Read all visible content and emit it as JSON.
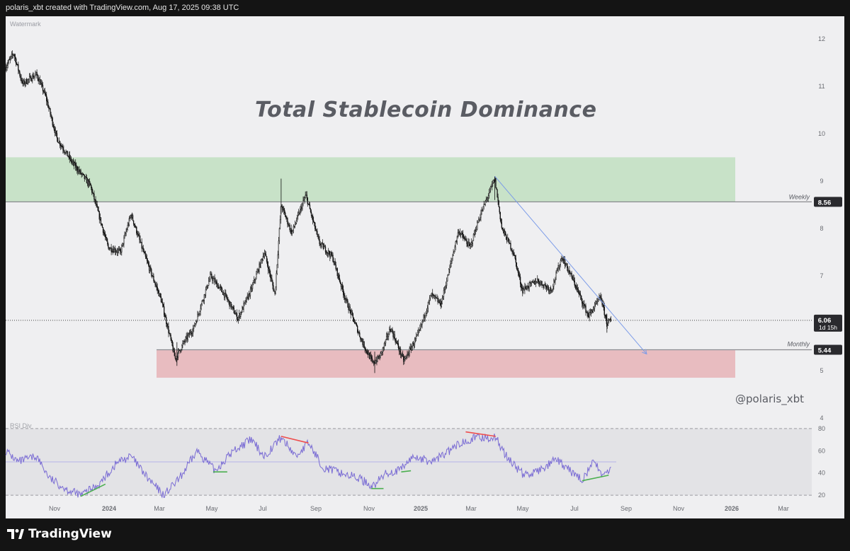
{
  "header": {
    "text": "polaris_xbt created with TradingView.com, Aug 17, 2025 09:38 UTC"
  },
  "watermark": "Watermark",
  "title": "Total Stablecoin Dominance",
  "handle": "@polaris_xbt",
  "brand": {
    "name": "TradingView",
    "logo_icon": "tradingview-logo-icon"
  },
  "rsi_label": "RSI Div",
  "colors": {
    "resistance_zone": "#c8e2c8",
    "support_zone": "#e8bcc0",
    "trendline": "#7b9be8",
    "rsi_line": "#7a6cd4",
    "bearish_div": "#ee4d4d",
    "bullish_div": "#4caf50"
  },
  "levels": {
    "weekly": {
      "label": "Weekly",
      "value": 8.56
    },
    "monthly": {
      "label": "Monthly",
      "value": 5.44
    },
    "current": {
      "value": "6.06",
      "countdown": "1d 15h"
    }
  },
  "chart_data": {
    "type": "candlestick",
    "title": "Total Stablecoin Dominance",
    "y_ticks": [
      "12",
      "11",
      "10",
      "9",
      "8",
      "7",
      "6",
      "5",
      "4"
    ],
    "ylim": [
      4,
      12.4
    ],
    "x_ticks": [
      "Nov",
      "2024",
      "Mar",
      "May",
      "Jul",
      "Sep",
      "Nov",
      "2025",
      "Mar",
      "May",
      "Jul",
      "Sep",
      "Nov",
      "2026",
      "Mar"
    ],
    "zones": [
      {
        "name": "resistance",
        "from": 8.55,
        "to": 9.5
      },
      {
        "name": "support",
        "from": 4.85,
        "to": 5.43
      }
    ],
    "anchors": [
      [
        "2023-10-01",
        11.4
      ],
      [
        "2023-10-10",
        11.7
      ],
      [
        "2023-10-20",
        11.05
      ],
      [
        "2023-11-05",
        11.25
      ],
      [
        "2023-11-15",
        10.8
      ],
      [
        "2023-11-28",
        9.9
      ],
      [
        "2023-12-15",
        9.4
      ],
      [
        "2024-01-05",
        8.9
      ],
      [
        "2024-01-25",
        7.6
      ],
      [
        "2024-02-08",
        7.5
      ],
      [
        "2024-02-20",
        8.3
      ],
      [
        "2024-03-05",
        7.5
      ],
      [
        "2024-03-25",
        6.5
      ],
      [
        "2024-04-10",
        5.25
      ],
      [
        "2024-04-20",
        5.6
      ],
      [
        "2024-05-01",
        5.9
      ],
      [
        "2024-05-20",
        7.0
      ],
      [
        "2024-06-05",
        6.6
      ],
      [
        "2024-06-20",
        6.1
      ],
      [
        "2024-07-05",
        6.7
      ],
      [
        "2024-07-20",
        7.5
      ],
      [
        "2024-08-01",
        6.6
      ],
      [
        "2024-08-08",
        8.5
      ],
      [
        "2024-08-20",
        7.9
      ],
      [
        "2024-09-05",
        8.7
      ],
      [
        "2024-09-20",
        7.7
      ],
      [
        "2024-10-05",
        7.4
      ],
      [
        "2024-10-20",
        6.5
      ],
      [
        "2024-11-08",
        5.6
      ],
      [
        "2024-11-20",
        5.15
      ],
      [
        "2024-11-28",
        5.3
      ],
      [
        "2024-12-10",
        5.9
      ],
      [
        "2024-12-25",
        5.2
      ],
      [
        "2025-01-10",
        5.75
      ],
      [
        "2025-01-25",
        6.6
      ],
      [
        "2025-02-05",
        6.4
      ],
      [
        "2025-02-25",
        7.95
      ],
      [
        "2025-03-10",
        7.6
      ],
      [
        "2025-03-20",
        8.2
      ],
      [
        "2025-04-07",
        9.05
      ],
      [
        "2025-04-15",
        8.0
      ],
      [
        "2025-04-28",
        7.5
      ],
      [
        "2025-05-08",
        6.7
      ],
      [
        "2025-05-25",
        6.9
      ],
      [
        "2025-06-10",
        6.7
      ],
      [
        "2025-06-22",
        7.4
      ],
      [
        "2025-07-05",
        6.9
      ],
      [
        "2025-07-22",
        6.15
      ],
      [
        "2025-08-05",
        6.55
      ],
      [
        "2025-08-12",
        6.0
      ],
      [
        "2025-08-17",
        6.06
      ]
    ],
    "trendline": [
      [
        "2025-04-07",
        9.1
      ],
      [
        "2025-09-26",
        5.35
      ]
    ],
    "rsi": {
      "ticks": [
        "80",
        "60",
        "40",
        "20"
      ],
      "ylim": [
        15,
        85
      ],
      "anchors": [
        [
          "2023-10-01",
          60
        ],
        [
          "2023-10-15",
          50
        ],
        [
          "2023-11-05",
          55
        ],
        [
          "2023-11-20",
          35
        ],
        [
          "2023-12-10",
          25
        ],
        [
          "2023-12-25",
          20
        ],
        [
          "2024-01-15",
          30
        ],
        [
          "2024-02-05",
          50
        ],
        [
          "2024-02-20",
          55
        ],
        [
          "2024-03-10",
          35
        ],
        [
          "2024-03-28",
          20
        ],
        [
          "2024-04-15",
          35
        ],
        [
          "2024-05-05",
          60
        ],
        [
          "2024-05-25",
          42
        ],
        [
          "2024-06-15",
          60
        ],
        [
          "2024-07-05",
          70
        ],
        [
          "2024-07-20",
          55
        ],
        [
          "2024-08-08",
          72
        ],
        [
          "2024-08-25",
          55
        ],
        [
          "2024-09-08",
          67
        ],
        [
          "2024-09-25",
          45
        ],
        [
          "2024-10-15",
          40
        ],
        [
          "2024-11-05",
          35
        ],
        [
          "2024-11-20",
          28
        ],
        [
          "2024-12-05",
          40
        ],
        [
          "2024-12-20",
          42
        ],
        [
          "2025-01-05",
          55
        ],
        [
          "2025-01-25",
          50
        ],
        [
          "2025-02-15",
          60
        ],
        [
          "2025-03-05",
          70
        ],
        [
          "2025-03-25",
          72
        ],
        [
          "2025-04-08",
          72
        ],
        [
          "2025-04-20",
          55
        ],
        [
          "2025-05-10",
          38
        ],
        [
          "2025-05-28",
          42
        ],
        [
          "2025-06-15",
          52
        ],
        [
          "2025-07-01",
          42
        ],
        [
          "2025-07-15",
          34
        ],
        [
          "2025-07-28",
          50
        ],
        [
          "2025-08-08",
          38
        ],
        [
          "2025-08-17",
          44
        ]
      ],
      "divergences": [
        {
          "type": "bearish",
          "from": [
            "2024-08-08",
            73
          ],
          "to": [
            "2024-09-08",
            67
          ]
        },
        {
          "type": "bearish",
          "from": [
            "2025-03-05",
            77
          ],
          "to": [
            "2025-04-08",
            73
          ]
        },
        {
          "type": "bullish",
          "from": [
            "2023-12-25",
            19
          ],
          "to": [
            "2024-01-22",
            30
          ]
        },
        {
          "type": "bullish",
          "from": [
            "2024-05-23",
            41
          ],
          "to": [
            "2024-06-08",
            41
          ]
        },
        {
          "type": "bullish",
          "from": [
            "2024-11-18",
            26
          ],
          "to": [
            "2024-12-02",
            26
          ]
        },
        {
          "type": "bullish",
          "from": [
            "2024-12-22",
            41
          ],
          "to": [
            "2025-01-02",
            42
          ]
        },
        {
          "type": "bullish",
          "from": [
            "2025-07-15",
            33
          ],
          "to": [
            "2025-08-14",
            38
          ]
        }
      ]
    }
  }
}
